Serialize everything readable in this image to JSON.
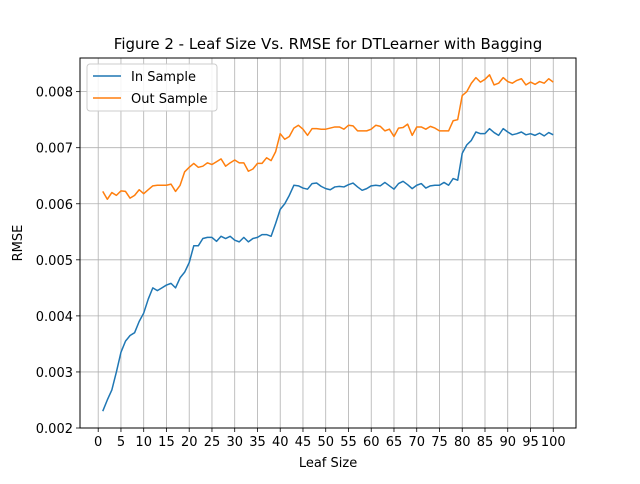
{
  "chart_data": {
    "type": "line",
    "title": "Figure 2 - Leaf Size Vs. RMSE for DTLearner with Bagging",
    "xlabel": "Leaf Size",
    "ylabel": "RMSE",
    "xlim": [
      -4,
      105
    ],
    "ylim": [
      0.002,
      0.0086
    ],
    "xticks": [
      0,
      5,
      10,
      15,
      20,
      25,
      30,
      35,
      40,
      45,
      50,
      55,
      60,
      65,
      70,
      75,
      80,
      85,
      90,
      95,
      100
    ],
    "xtick_labels": [
      "0",
      "5",
      "10",
      "15",
      "20",
      "25",
      "30",
      "35",
      "40",
      "45",
      "50",
      "55",
      "60",
      "65",
      "70",
      "75",
      "80",
      "85",
      "90",
      "95",
      "100"
    ],
    "yticks": [
      0.002,
      0.003,
      0.004,
      0.005,
      0.006,
      0.007,
      0.008
    ],
    "ytick_labels": [
      "0.002",
      "0.003",
      "0.004",
      "0.005",
      "0.006",
      "0.007",
      "0.008"
    ],
    "grid": true,
    "legend_position": "top-left",
    "x": [
      1,
      2,
      3,
      4,
      5,
      6,
      7,
      8,
      9,
      10,
      11,
      12,
      13,
      14,
      15,
      16,
      17,
      18,
      19,
      20,
      21,
      22,
      23,
      24,
      25,
      26,
      27,
      28,
      29,
      30,
      31,
      32,
      33,
      34,
      35,
      36,
      37,
      38,
      39,
      40,
      41,
      42,
      43,
      44,
      45,
      46,
      47,
      48,
      49,
      50,
      51,
      52,
      53,
      54,
      55,
      56,
      57,
      58,
      59,
      60,
      61,
      62,
      63,
      64,
      65,
      66,
      67,
      68,
      69,
      70,
      71,
      72,
      73,
      74,
      75,
      76,
      77,
      78,
      79,
      80,
      81,
      82,
      83,
      84,
      85,
      86,
      87,
      88,
      89,
      90,
      91,
      92,
      93,
      94,
      95,
      96,
      97,
      98,
      99,
      100
    ],
    "series": [
      {
        "name": "In Sample",
        "color": "#1f77b4",
        "values": [
          0.0023,
          0.0025,
          0.00268,
          0.003,
          0.00335,
          0.00355,
          0.00365,
          0.0037,
          0.0039,
          0.00405,
          0.0043,
          0.0045,
          0.00445,
          0.0045,
          0.00455,
          0.00458,
          0.0045,
          0.00468,
          0.00478,
          0.00495,
          0.00525,
          0.00525,
          0.00538,
          0.0054,
          0.0054,
          0.00533,
          0.00542,
          0.00538,
          0.00542,
          0.00535,
          0.00532,
          0.0054,
          0.00532,
          0.00538,
          0.0054,
          0.00545,
          0.00545,
          0.00542,
          0.00565,
          0.0059,
          0.006,
          0.00615,
          0.00633,
          0.00632,
          0.00628,
          0.00626,
          0.00636,
          0.00637,
          0.00631,
          0.00627,
          0.00625,
          0.0063,
          0.00631,
          0.0063,
          0.00634,
          0.00637,
          0.0063,
          0.00624,
          0.00627,
          0.00632,
          0.00633,
          0.00632,
          0.00638,
          0.00632,
          0.00626,
          0.00636,
          0.0064,
          0.00634,
          0.00627,
          0.00633,
          0.00636,
          0.00628,
          0.00632,
          0.00633,
          0.00633,
          0.00638,
          0.00633,
          0.00645,
          0.00642,
          0.0069,
          0.00705,
          0.00713,
          0.00728,
          0.00725,
          0.00725,
          0.00734,
          0.00727,
          0.00722,
          0.00734,
          0.00728,
          0.00723,
          0.00725,
          0.00728,
          0.00723,
          0.00725,
          0.00722,
          0.00726,
          0.00721,
          0.00727,
          0.00723
        ]
      },
      {
        "name": "Out Sample",
        "color": "#ff7f0e",
        "values": [
          0.00622,
          0.00608,
          0.0062,
          0.00615,
          0.00623,
          0.00622,
          0.0061,
          0.00615,
          0.00625,
          0.00618,
          0.00625,
          0.00632,
          0.00633,
          0.00633,
          0.00633,
          0.00635,
          0.00622,
          0.00633,
          0.00657,
          0.00665,
          0.00672,
          0.00665,
          0.00667,
          0.00673,
          0.0067,
          0.00675,
          0.0068,
          0.00667,
          0.00673,
          0.00678,
          0.00673,
          0.00673,
          0.00658,
          0.00662,
          0.00672,
          0.00672,
          0.00682,
          0.00677,
          0.00693,
          0.00725,
          0.00715,
          0.0072,
          0.00735,
          0.0074,
          0.00733,
          0.00722,
          0.00734,
          0.00734,
          0.00733,
          0.00733,
          0.00735,
          0.00737,
          0.00737,
          0.00733,
          0.0074,
          0.00739,
          0.0073,
          0.0073,
          0.0073,
          0.00733,
          0.0074,
          0.00738,
          0.0073,
          0.00733,
          0.0072,
          0.00735,
          0.00736,
          0.00742,
          0.00722,
          0.00737,
          0.00737,
          0.00733,
          0.00738,
          0.00735,
          0.0073,
          0.0073,
          0.0073,
          0.00748,
          0.0075,
          0.00793,
          0.008,
          0.00815,
          0.00825,
          0.00817,
          0.00822,
          0.0083,
          0.00812,
          0.00815,
          0.00825,
          0.00818,
          0.00815,
          0.0082,
          0.00823,
          0.00812,
          0.00817,
          0.00813,
          0.00818,
          0.00815,
          0.00823,
          0.00817
        ]
      }
    ]
  }
}
